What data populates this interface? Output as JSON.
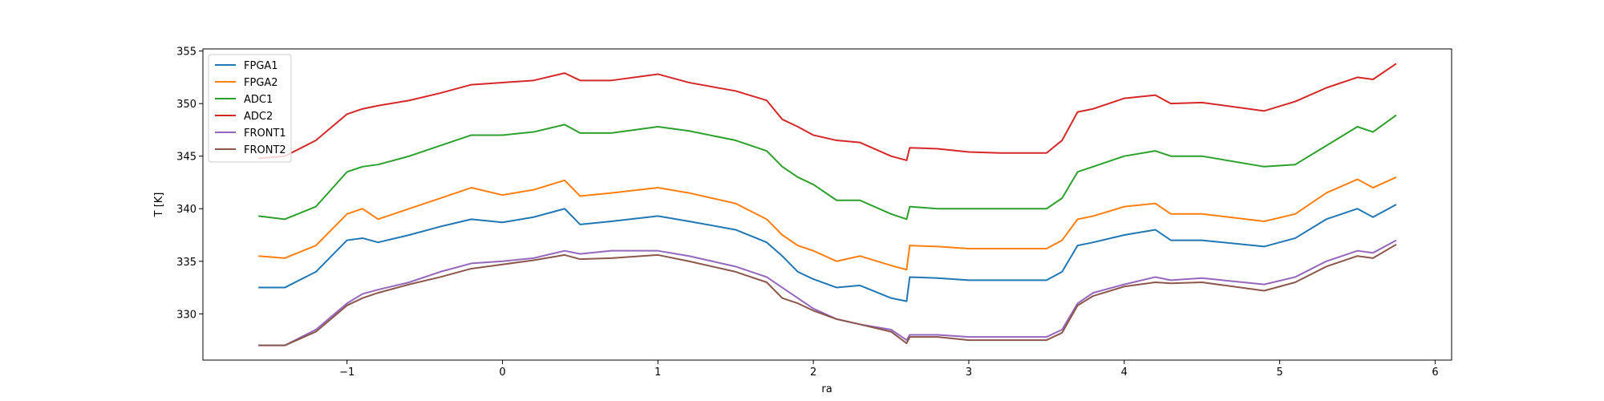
{
  "chart_data": {
    "type": "line",
    "xlabel": "ra",
    "ylabel": "T [K]",
    "x": [
      -1.57,
      -1.4,
      -1.2,
      -1.0,
      -0.9,
      -0.8,
      -0.6,
      -0.4,
      -0.2,
      0,
      0.2,
      0.4,
      0.5,
      0.7,
      1.0,
      1.2,
      1.5,
      1.7,
      1.8,
      1.9,
      2.0,
      2.15,
      2.3,
      2.5,
      2.6,
      2.62,
      2.8,
      3.0,
      3.2,
      3.5,
      3.6,
      3.7,
      3.8,
      4.0,
      4.2,
      4.3,
      4.5,
      4.9,
      5.1,
      5.3,
      5.5,
      5.6,
      5.75
    ],
    "series": [
      {
        "name": "FPGA1",
        "color": "#1f77b4",
        "values": [
          332.5,
          332.5,
          334,
          337,
          337.2,
          336.8,
          337.5,
          338.3,
          339,
          338.7,
          339.2,
          340,
          338.5,
          338.8,
          339.3,
          338.8,
          338,
          336.8,
          335.5,
          334,
          333.3,
          332.5,
          332.7,
          331.5,
          331.2,
          333.5,
          333.4,
          333.2,
          333.2,
          333.2,
          334,
          336.5,
          336.8,
          337.5,
          338,
          337,
          337,
          336.4,
          337.2,
          339,
          340,
          339.2,
          340.4
        ]
      },
      {
        "name": "FPGA2",
        "color": "#ff7f0e",
        "values": [
          335.5,
          335.3,
          336.5,
          339.5,
          340,
          339,
          340,
          341,
          342,
          341.3,
          341.8,
          342.7,
          341.2,
          341.5,
          342,
          341.5,
          340.5,
          339,
          337.5,
          336.5,
          336,
          335,
          335.5,
          334.6,
          334.2,
          336.5,
          336.4,
          336.2,
          336.2,
          336.2,
          337,
          339,
          339.3,
          340.2,
          340.5,
          339.5,
          339.5,
          338.8,
          339.5,
          341.5,
          342.8,
          342,
          343
        ]
      },
      {
        "name": "ADC1",
        "color": "#2ca02c",
        "values": [
          339.3,
          339,
          340.2,
          343.5,
          344,
          344.2,
          345,
          346,
          347,
          347,
          347.3,
          348,
          347.2,
          347.2,
          347.8,
          347.4,
          346.5,
          345.5,
          344,
          343,
          342.3,
          340.8,
          340.8,
          339.5,
          339,
          340.2,
          340,
          340,
          340,
          340,
          341,
          343.5,
          344,
          345,
          345.5,
          345,
          345,
          344,
          344.2,
          346,
          347.8,
          347.3,
          348.9
        ]
      },
      {
        "name": "ADC2",
        "color": "#d62728",
        "values": [
          344.8,
          345,
          346.5,
          349,
          349.5,
          349.8,
          350.3,
          351,
          351.8,
          352,
          352.2,
          352.9,
          352.2,
          352.2,
          352.8,
          352,
          351.2,
          350.3,
          348.5,
          347.8,
          347,
          346.5,
          346.3,
          345,
          344.6,
          345.8,
          345.7,
          345.4,
          345.3,
          345.3,
          346.5,
          349.2,
          349.5,
          350.5,
          350.8,
          350,
          350.1,
          349.3,
          350.2,
          351.5,
          352.5,
          352.3,
          353.8
        ]
      },
      {
        "name": "FRONT1",
        "color": "#9467bd",
        "values": [
          327,
          327,
          328.5,
          331,
          331.9,
          332.3,
          333,
          334,
          334.8,
          335,
          335.3,
          336,
          335.7,
          336,
          336,
          335.5,
          334.5,
          333.5,
          332.5,
          331.5,
          330.5,
          329.5,
          329,
          328.5,
          327.5,
          328,
          328,
          327.8,
          327.8,
          327.8,
          328.5,
          331,
          332,
          332.8,
          333.5,
          333.2,
          333.4,
          332.8,
          333.5,
          335,
          336,
          335.8,
          337
        ]
      },
      {
        "name": "FRONT2",
        "color": "#8c564b",
        "values": [
          327,
          327,
          328.3,
          330.8,
          331.5,
          332,
          332.8,
          333.5,
          334.3,
          334.7,
          335.1,
          335.6,
          335.2,
          335.3,
          335.6,
          335,
          334,
          333,
          331.5,
          331,
          330.3,
          329.5,
          329,
          328.3,
          327.2,
          327.8,
          327.8,
          327.5,
          327.5,
          327.5,
          328.2,
          330.8,
          331.7,
          332.6,
          333,
          332.9,
          333,
          332.2,
          333,
          334.5,
          335.5,
          335.3,
          336.6
        ]
      }
    ],
    "xlim": [
      -1.927,
      6.106
    ],
    "ylim": [
      325.6,
      355.2
    ],
    "xticks": [
      {
        "value": -1,
        "label": "−1"
      },
      0,
      1,
      2,
      3,
      4,
      5,
      6
    ],
    "yticks": [
      330,
      335,
      340,
      345,
      350,
      355
    ],
    "legend": "upper left"
  }
}
